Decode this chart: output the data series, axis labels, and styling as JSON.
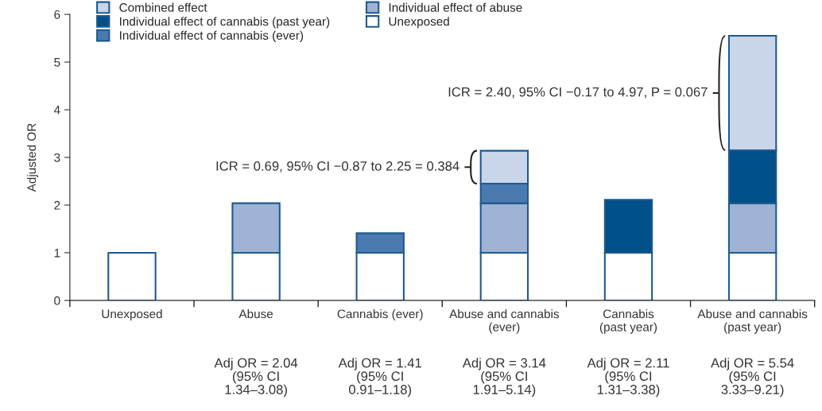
{
  "chart_data": {
    "type": "bar",
    "stacked": true,
    "ylabel": "Adjusted OR",
    "categories": [
      "Unexposed",
      "Abuse",
      "Cannabis (ever)",
      "Abuse and cannabis\n(ever)",
      "Cannabis\n(past year)",
      "Abuse and cannabis\n(past year)"
    ],
    "series": [
      {
        "name": "Unexposed",
        "color": "#ffffff",
        "values": [
          1,
          1,
          1,
          1,
          1,
          1
        ]
      },
      {
        "name": "Individual effect of abuse",
        "color": "#9fb3d4",
        "values": [
          null,
          1.04,
          null,
          1.04,
          null,
          1.04
        ]
      },
      {
        "name": "Individual effect of cannabis (ever)",
        "color": "#4a7ab0",
        "values": [
          null,
          null,
          0.41,
          0.41,
          null,
          null
        ]
      },
      {
        "name": "Individual effect of cannabis (past year)",
        "color": "#00508a",
        "values": [
          null,
          null,
          null,
          null,
          1.11,
          1.11
        ]
      },
      {
        "name": "Combined effect",
        "color": "#c9d5e8",
        "values": [
          null,
          null,
          null,
          0.69,
          null,
          2.4
        ]
      }
    ],
    "ylim": [
      0,
      6
    ],
    "yticks": [
      0,
      1,
      2,
      3,
      4,
      5,
      6
    ],
    "grid": false,
    "legend": "top left",
    "annotations": [
      "ICR = 0.69, 95% CI −0.87 to 2.25 = 0.384",
      "ICR = 2.40, 95% CI −0.17 to 4.97, P = 0.067",
      "Adj OR = 2.04\n(95% CI\n1.34–3.08)",
      "Adj OR = 1.41\n(95% CI\n0.91–1.18)",
      "Adj OR = 3.14\n(95% CI\n1.91–5.14)",
      "Adj OR = 2.11\n(95% CI\n1.31–3.38)",
      "Adj OR = 5.54\n(95% CI\n3.33–9.21)"
    ]
  }
}
